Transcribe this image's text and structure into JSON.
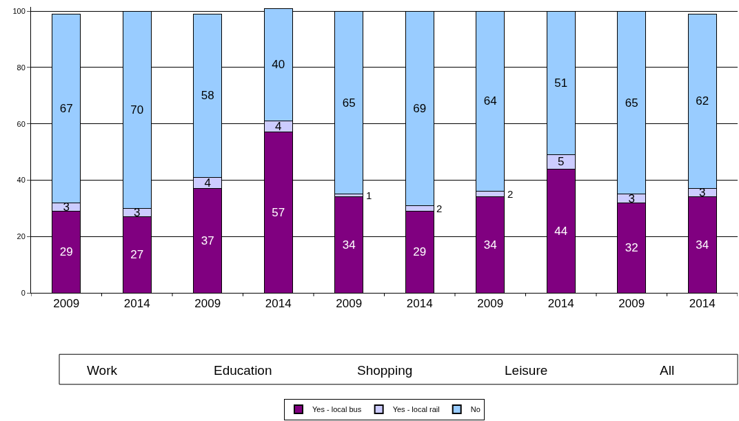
{
  "chart_data": {
    "type": "bar",
    "stacked": true,
    "categories": [
      "2009",
      "2014",
      "2009",
      "2014",
      "2009",
      "2014",
      "2009",
      "2014",
      "2009",
      "2014"
    ],
    "series": [
      {
        "name": "Yes - local bus",
        "color": "#800080",
        "values": [
          29,
          27,
          37,
          57,
          34,
          29,
          34,
          44,
          32,
          34
        ]
      },
      {
        "name": "Yes - local rail",
        "color": "#ccccff",
        "values": [
          3,
          3,
          4,
          4,
          1,
          2,
          2,
          5,
          3,
          3
        ]
      },
      {
        "name": "No",
        "color": "#99ccff",
        "values": [
          67,
          70,
          58,
          40,
          65,
          69,
          64,
          51,
          65,
          62
        ]
      }
    ],
    "ylim": [
      0,
      101.5
    ],
    "yticks": [
      0,
      20,
      40,
      60,
      80,
      100
    ],
    "grid": "y",
    "legend": "bottom",
    "data_labels": true,
    "annotations": [
      "Work",
      "Education",
      "Shopping",
      "Leisure",
      "All"
    ]
  }
}
